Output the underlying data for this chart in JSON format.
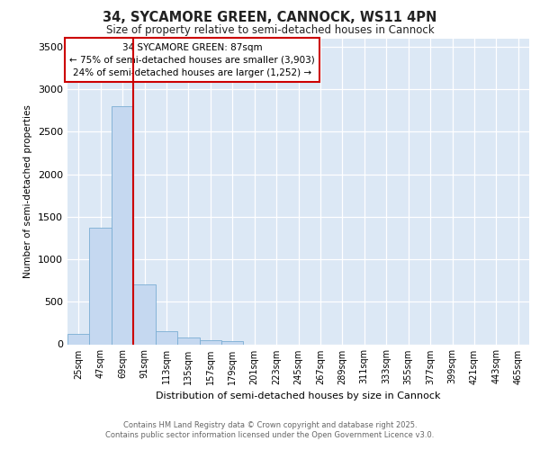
{
  "title_line1": "34, SYCAMORE GREEN, CANNOCK, WS11 4PN",
  "title_line2": "Size of property relative to semi-detached houses in Cannock",
  "xlabel": "Distribution of semi-detached houses by size in Cannock",
  "ylabel": "Number of semi-detached properties",
  "bar_labels": [
    "25sqm",
    "47sqm",
    "69sqm",
    "91sqm",
    "113sqm",
    "135sqm",
    "157sqm",
    "179sqm",
    "201sqm",
    "223sqm",
    "245sqm",
    "267sqm",
    "289sqm",
    "311sqm",
    "333sqm",
    "355sqm",
    "377sqm",
    "399sqm",
    "421sqm",
    "443sqm",
    "465sqm"
  ],
  "bar_values": [
    120,
    1370,
    2800,
    700,
    155,
    80,
    45,
    35,
    0,
    0,
    0,
    0,
    0,
    0,
    0,
    0,
    0,
    0,
    0,
    0,
    0
  ],
  "bar_color": "#c5d8f0",
  "bar_edge_color": "#7aadd4",
  "red_line_color": "#cc0000",
  "annotation_title": "34 SYCAMORE GREEN: 87sqm",
  "annotation_line2": "← 75% of semi-detached houses are smaller (3,903)",
  "annotation_line3": "24% of semi-detached houses are larger (1,252) →",
  "annotation_box_color": "#ffffff",
  "annotation_box_edge": "#cc0000",
  "plot_background": "#dce8f5",
  "grid_color": "#ffffff",
  "ylim": [
    0,
    3600
  ],
  "yticks": [
    0,
    500,
    1000,
    1500,
    2000,
    2500,
    3000,
    3500
  ],
  "footer_line1": "Contains HM Land Registry data © Crown copyright and database right 2025.",
  "footer_line2": "Contains public sector information licensed under the Open Government Licence v3.0."
}
